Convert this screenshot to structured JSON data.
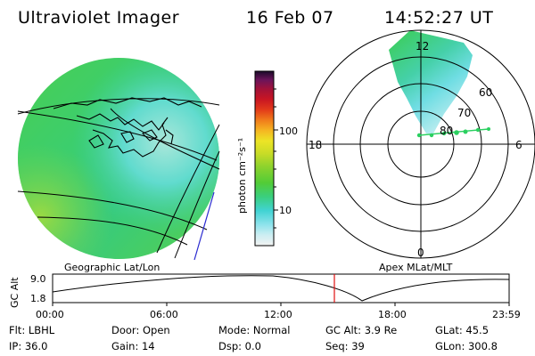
{
  "header": {
    "instrument": "Ultraviolet Imager",
    "date": "16 Feb 07",
    "time": "14:52:27 UT"
  },
  "colorbar": {
    "unit_label": "photon cm⁻²s⁻¹",
    "ticks": [
      "100",
      "10"
    ],
    "colors": [
      "#f2f2f2",
      "#cdeef2",
      "#8fe3ec",
      "#41d3d3",
      "#3acf7e",
      "#52cc37",
      "#8bd22d",
      "#c9dc27",
      "#ece426",
      "#f5b622",
      "#f07b1b",
      "#e23a1a",
      "#c81523",
      "#a0123a",
      "#6b145a",
      "#2b0c3b",
      "#0a0a0a"
    ]
  },
  "panels": {
    "geo_label": "Geographic Lat/Lon",
    "apex_label": "Apex  MLat/MLT",
    "polar_mlt": [
      "12",
      "18",
      "6",
      "0"
    ],
    "polar_lat": [
      "60",
      "70",
      "80"
    ]
  },
  "altitude_plot": {
    "axis_title": "GC Alt",
    "y_ticks": [
      "9.0",
      "1.8"
    ],
    "x_ticks": [
      "00:00",
      "06:00",
      "12:00",
      "18:00",
      "23:59"
    ],
    "marker_time": "14:52"
  },
  "info": {
    "filter": "Flt: LBHL",
    "door": "Door: Open",
    "mode": "Mode: Normal",
    "gc_alt": "GC Alt: 3.9 Re",
    "glat": "GLat:   45.5",
    "ip": "IP: 36.0",
    "gain": "Gain: 14",
    "dsp": "Dsp:      0.0",
    "seq": "Seq: 39",
    "glon": "GLon: 300.8"
  }
}
